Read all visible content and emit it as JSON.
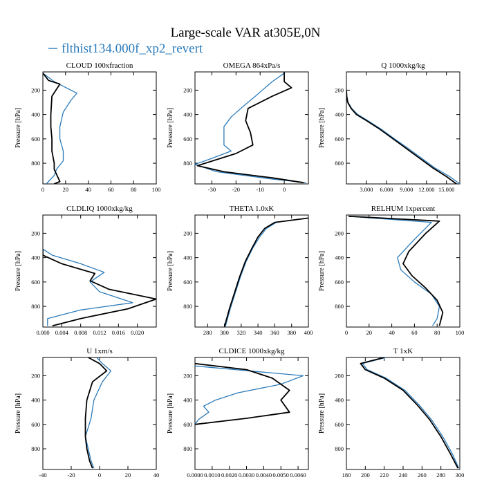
{
  "title": "Large-scale VAR at305E,0N",
  "legend": {
    "label": "flthist134.000f_xp2_revert",
    "color": "#2b7bba"
  },
  "colors": {
    "black": "#000000",
    "blue": "#2b7bba"
  },
  "chart_data": [
    {
      "type": "line",
      "title": "CLOUD 100xfraction",
      "ylabel": "Pressure [hPa]",
      "xlim": [
        0,
        100
      ],
      "ylim": [
        970,
        50
      ],
      "xticks": [
        0,
        20,
        40,
        60,
        80,
        100
      ],
      "xtick_labels": [
        "0",
        "20",
        "40",
        "60",
        "80",
        "100"
      ],
      "yticks": [
        200,
        400,
        600,
        800
      ],
      "ytick_labels": [
        "200",
        "400",
        "600",
        "800"
      ],
      "series": [
        {
          "color": "black",
          "x": [
            0,
            5,
            15,
            8,
            7,
            7,
            8,
            8,
            10,
            10,
            15,
            10
          ],
          "y": [
            60,
            120,
            150,
            250,
            400,
            500,
            600,
            700,
            800,
            850,
            950,
            970
          ]
        },
        {
          "color": "blue",
          "name": "flthist134.000f_xp2_revert",
          "x": [
            0,
            10,
            30,
            25,
            18,
            15,
            15,
            18,
            18,
            12,
            10,
            5,
            3
          ],
          "y": [
            60,
            130,
            225,
            280,
            380,
            500,
            600,
            700,
            780,
            850,
            900,
            950,
            970
          ]
        }
      ]
    },
    {
      "type": "line",
      "title": "OMEGA 864xPa/s",
      "ylabel": "Pressure [hPa]",
      "xlim": [
        -37,
        10
      ],
      "ylim": [
        970,
        50
      ],
      "xticks": [
        -30,
        -20,
        -10,
        0
      ],
      "xtick_labels": [
        "-30",
        "-20",
        "-10",
        "0"
      ],
      "yticks": [
        200,
        400,
        600,
        800
      ],
      "ytick_labels": [
        "200",
        "400",
        "600",
        "800"
      ],
      "series": [
        {
          "color": "black",
          "x": [
            0,
            0,
            3,
            -5,
            -15,
            -16,
            -14,
            -13,
            -20,
            -36,
            -25,
            -5,
            8
          ],
          "y": [
            50,
            130,
            180,
            250,
            350,
            450,
            550,
            650,
            720,
            820,
            870,
            920,
            960
          ]
        },
        {
          "color": "blue",
          "name": "flthist134.000f_xp2_revert",
          "x": [
            0,
            -5,
            -12,
            -18,
            -22,
            -25,
            -25,
            -22,
            -30,
            -37,
            -28,
            -5,
            9
          ],
          "y": [
            60,
            130,
            250,
            350,
            420,
            500,
            650,
            700,
            760,
            810,
            870,
            930,
            960
          ]
        }
      ]
    },
    {
      "type": "line",
      "title": "Q 1000xkg/kg",
      "ylabel": "Pressure [hPa]",
      "xlim": [
        0,
        17000
      ],
      "ylim": [
        970,
        50
      ],
      "xticks": [
        3000,
        6000,
        9000,
        12000,
        15000
      ],
      "xtick_labels": [
        "3.000",
        "6.000",
        "9.000",
        "12.000",
        "15.000"
      ],
      "yticks": [
        200,
        400,
        600,
        800
      ],
      "ytick_labels": [
        "200",
        "400",
        "600",
        "800"
      ],
      "series": [
        {
          "color": "black",
          "x": [
            0,
            50,
            200,
            700,
            1500,
            3000,
            5000,
            7000,
            9000,
            11000,
            13000,
            15000,
            16500
          ],
          "y": [
            200,
            250,
            300,
            350,
            400,
            450,
            520,
            600,
            680,
            760,
            840,
            910,
            970
          ]
        },
        {
          "color": "blue",
          "name": "flthist134.000f_xp2_revert",
          "x": [
            0,
            50,
            250,
            800,
            1700,
            3200,
            5200,
            7200,
            9300,
            11300,
            13300,
            15500,
            17000
          ],
          "y": [
            200,
            250,
            300,
            350,
            400,
            450,
            520,
            600,
            680,
            760,
            840,
            910,
            970
          ]
        }
      ]
    },
    {
      "type": "line",
      "title": "CLDLIQ 1000xkg/kg",
      "ylabel": "Pressure [hPa]",
      "xlim": [
        0,
        0.024
      ],
      "ylim": [
        970,
        50
      ],
      "xticks": [
        0,
        0.004,
        0.008,
        0.012,
        0.016,
        0.02
      ],
      "xtick_labels": [
        "0.000",
        "0.004",
        "0.008",
        "0.012",
        "0.016",
        "0.020"
      ],
      "yticks": [
        200,
        400,
        600,
        800
      ],
      "ytick_labels": [
        "200",
        "400",
        "600",
        "800"
      ],
      "series": [
        {
          "color": "black",
          "x": [
            0,
            0,
            0.004,
            0.011,
            0.01,
            0.014,
            0.024,
            0.018,
            0.008,
            0.002
          ],
          "y": [
            330,
            380,
            450,
            530,
            590,
            660,
            740,
            820,
            900,
            960
          ]
        },
        {
          "color": "blue",
          "name": "flthist134.000f_xp2_revert",
          "x": [
            0,
            0.002,
            0.008,
            0.013,
            0.01,
            0.012,
            0.019,
            0.008,
            0.001,
            0.001
          ],
          "y": [
            330,
            380,
            450,
            520,
            600,
            680,
            770,
            830,
            900,
            960
          ]
        }
      ]
    },
    {
      "type": "line",
      "title": "THETA 1.0xK",
      "ylabel": "Pressure [hPa]",
      "xlim": [
        265,
        400
      ],
      "ylim": [
        970,
        50
      ],
      "xticks": [
        280,
        300,
        320,
        340,
        360,
        380,
        400
      ],
      "xtick_labels": [
        "280",
        "300",
        "320",
        "340",
        "360",
        "380",
        "400"
      ],
      "yticks": [
        200,
        400,
        600,
        800
      ],
      "ytick_labels": [
        "200",
        "400",
        "600",
        "800"
      ],
      "series": [
        {
          "color": "black",
          "x": [
            400,
            360,
            348,
            340,
            333,
            325,
            318,
            312,
            306,
            302,
            300
          ],
          "y": [
            75,
            110,
            160,
            230,
            320,
            430,
            560,
            690,
            820,
            920,
            970
          ]
        },
        {
          "color": "blue",
          "name": "flthist134.000f_xp2_revert",
          "x": [
            400,
            362,
            350,
            342,
            334,
            326,
            319,
            313,
            307,
            303,
            301
          ],
          "y": [
            75,
            110,
            160,
            230,
            320,
            430,
            560,
            690,
            820,
            920,
            970
          ]
        }
      ]
    },
    {
      "type": "line",
      "title": "RELHUM 1xpercent",
      "ylabel": "Pressure [hPa]",
      "xlim": [
        0,
        100
      ],
      "ylim": [
        970,
        50
      ],
      "xticks": [
        0,
        20,
        40,
        60,
        80,
        100
      ],
      "xtick_labels": [
        "0",
        "20",
        "40",
        "60",
        "80",
        "100"
      ],
      "yticks": [
        200,
        400,
        600,
        800
      ],
      "ytick_labels": [
        "200",
        "400",
        "600",
        "800"
      ],
      "series": [
        {
          "color": "black",
          "x": [
            2,
            82,
            70,
            55,
            50,
            58,
            70,
            80,
            85,
            82
          ],
          "y": [
            60,
            100,
            200,
            350,
            450,
            550,
            650,
            750,
            850,
            960
          ]
        },
        {
          "color": "blue",
          "name": "flthist134.000f_xp2_revert",
          "x": [
            2,
            75,
            60,
            45,
            48,
            60,
            75,
            82,
            80,
            76
          ],
          "y": [
            60,
            110,
            250,
            400,
            500,
            600,
            700,
            800,
            900,
            960
          ]
        }
      ]
    },
    {
      "type": "line",
      "title": "U 1xm/s",
      "ylabel": "Pressure [hPa]",
      "xlim": [
        -40,
        40
      ],
      "ylim": [
        970,
        50
      ],
      "xticks": [
        -40,
        -20,
        0,
        20,
        40
      ],
      "xtick_labels": [
        "-40",
        "-20",
        "0",
        "20",
        "40"
      ],
      "yticks": [
        200,
        400,
        600,
        800
      ],
      "ytick_labels": [
        "200",
        "400",
        "600",
        "800"
      ],
      "series": [
        {
          "color": "black",
          "x": [
            -8,
            0,
            5,
            -5,
            -9,
            -10,
            -10,
            -9,
            -7,
            -5
          ],
          "y": [
            50,
            100,
            160,
            250,
            400,
            550,
            700,
            800,
            900,
            960
          ]
        },
        {
          "color": "blue",
          "name": "flthist134.000f_xp2_revert",
          "x": [
            -2,
            2,
            8,
            2,
            -4,
            -6,
            -10,
            -8,
            -6,
            -4
          ],
          "y": [
            50,
            100,
            160,
            250,
            400,
            550,
            700,
            800,
            900,
            960
          ]
        }
      ]
    },
    {
      "type": "line",
      "title": "CLDICE 1000xkg/kg",
      "ylabel": "Pressure [hPa]",
      "xlim": [
        0,
        0.0066
      ],
      "ylim": [
        970,
        50
      ],
      "xticks": [
        0,
        0.001,
        0.002,
        0.003,
        0.004,
        0.005,
        0.006
      ],
      "xtick_labels": [
        "0.0000",
        "0.0010",
        "0.0020",
        "0.0030",
        "0.0040",
        "0.0050",
        "0.0060"
      ],
      "yticks": [
        200,
        400,
        600,
        800
      ],
      "ytick_labels": [
        "200",
        "400",
        "600",
        "800"
      ],
      "series": [
        {
          "color": "black",
          "x": [
            0,
            0.003,
            0.0045,
            0.0055,
            0.005,
            0.0055,
            0.003,
            0
          ],
          "y": [
            100,
            150,
            220,
            320,
            400,
            500,
            550,
            600
          ]
        },
        {
          "color": "blue",
          "name": "flthist134.000f_xp2_revert",
          "x": [
            0,
            0.0063,
            0.005,
            0.0025,
            0.0012,
            0.0005,
            0.0008,
            0.0002,
            0
          ],
          "y": [
            120,
            200,
            270,
            340,
            400,
            450,
            500,
            560,
            600
          ]
        }
      ]
    },
    {
      "type": "line",
      "title": "T 1xK",
      "ylabel": "Pressure [hPa]",
      "xlim": [
        180,
        300
      ],
      "ylim": [
        970,
        50
      ],
      "xticks": [
        180,
        200,
        220,
        240,
        260,
        280,
        300
      ],
      "xtick_labels": [
        "180",
        "200",
        "220",
        "240",
        "260",
        "280",
        "300"
      ],
      "yticks": [
        200,
        400,
        600,
        800
      ],
      "ytick_labels": [
        "200",
        "400",
        "600",
        "800"
      ],
      "series": [
        {
          "color": "black",
          "x": [
            220,
            195,
            200,
            220,
            240,
            255,
            268,
            280,
            290,
            298
          ],
          "y": [
            50,
            100,
            150,
            220,
            320,
            440,
            560,
            700,
            840,
            960
          ]
        },
        {
          "color": "blue",
          "name": "flthist134.000f_xp2_revert",
          "x": [
            222,
            197,
            202,
            222,
            242,
            257,
            270,
            282,
            292,
            299
          ],
          "y": [
            50,
            100,
            150,
            220,
            320,
            440,
            560,
            700,
            840,
            960
          ]
        }
      ]
    }
  ]
}
